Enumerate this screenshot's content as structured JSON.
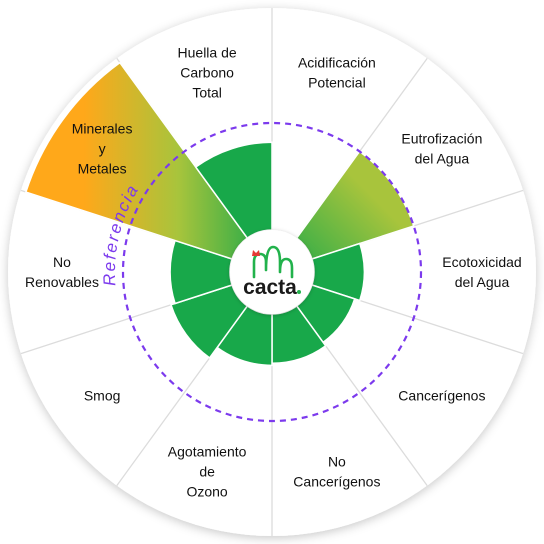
{
  "chart_data": {
    "type": "radial-bar",
    "title": "",
    "reference_label": "Referencia",
    "reference_value": 100,
    "max_value": 210,
    "categories": [
      {
        "label_lines": [
          "Acidificación",
          "Potencial"
        ],
        "value": 0
      },
      {
        "label_lines": [
          "Eutrofización",
          "del Agua"
        ],
        "value": 100
      },
      {
        "label_lines": [
          "Ecotoxicidad",
          "del Agua"
        ],
        "value": 47
      },
      {
        "label_lines": [
          "Cancerígenos"
        ],
        "value": 42
      },
      {
        "label_lines": [
          "No",
          "Cancerígenos"
        ],
        "value": 46
      },
      {
        "label_lines": [
          "Agotamiento",
          "de",
          "Ozono"
        ],
        "value": 48
      },
      {
        "label_lines": [
          "Smog"
        ],
        "value": 60
      },
      {
        "label_lines": [
          "No",
          "Renovables"
        ],
        "value": 56
      },
      {
        "label_lines": [
          "Minerales",
          "y",
          "Metales"
        ],
        "value": 205
      },
      {
        "label_lines": [
          "Huella de",
          "Carbono",
          "Total"
        ],
        "value": 82
      }
    ]
  },
  "logo": {
    "text": "cacta",
    "name": "cacta-logo"
  },
  "colors": {
    "low": "#18a84a",
    "mid": "#a8c43c",
    "high": "#ffa81a",
    "reference_line": "#7c3aed",
    "divider": "#dcdcdc"
  }
}
